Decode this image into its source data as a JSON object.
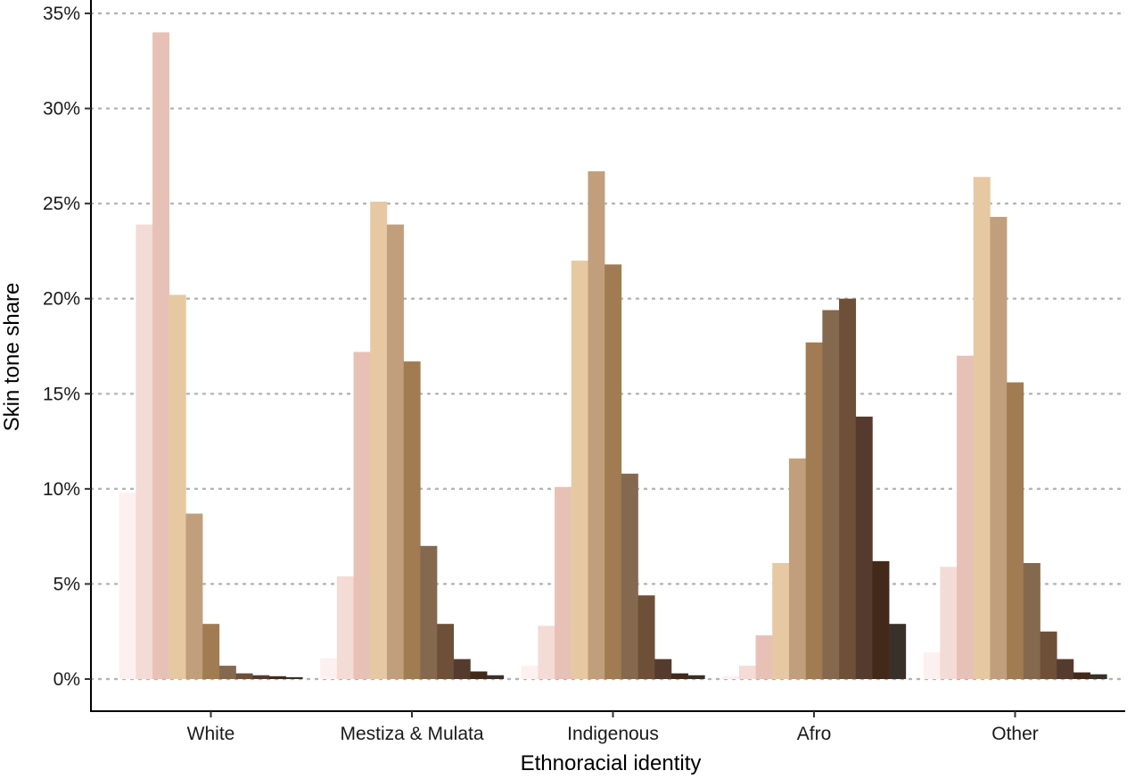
{
  "chart_data": {
    "type": "bar",
    "xlabel": "Ethnoracial identity",
    "ylabel": "Skin tone share",
    "ylim": [
      0,
      35
    ],
    "yticks": [
      0,
      5,
      10,
      15,
      20,
      25,
      30,
      35
    ],
    "ytick_labels": [
      "0%",
      "5%",
      "10%",
      "15%",
      "20%",
      "25%",
      "30%",
      "35%"
    ],
    "grid": "horizontal dotted",
    "legend": "none",
    "categories": [
      "White",
      "Mestiza & Mulata",
      "Indigenous",
      "Afro",
      "Other"
    ],
    "series_colors": [
      "#fdf0f0",
      "#f3dbd6",
      "#e8c1b6",
      "#e6c9a2",
      "#c19f7d",
      "#a17c52",
      "#84694f",
      "#6e5038",
      "#553b2e",
      "#43291a",
      "#393029"
    ],
    "series": [
      {
        "values": [
          9.8,
          1.1,
          0.7,
          0.15,
          1.4
        ]
      },
      {
        "values": [
          23.9,
          5.4,
          2.8,
          0.7,
          5.9
        ]
      },
      {
        "values": [
          34.0,
          17.2,
          10.1,
          2.3,
          17.0
        ]
      },
      {
        "values": [
          20.2,
          25.1,
          22.0,
          6.1,
          26.4
        ]
      },
      {
        "values": [
          8.7,
          23.9,
          26.7,
          11.6,
          24.3
        ]
      },
      {
        "values": [
          2.9,
          16.7,
          21.8,
          17.7,
          15.6
        ]
      },
      {
        "values": [
          0.7,
          7.0,
          10.8,
          19.4,
          6.1
        ]
      },
      {
        "values": [
          0.3,
          2.9,
          4.4,
          20.0,
          2.5
        ]
      },
      {
        "values": [
          0.2,
          1.05,
          1.05,
          13.8,
          1.05
        ]
      },
      {
        "values": [
          0.15,
          0.4,
          0.3,
          6.2,
          0.35
        ]
      },
      {
        "values": [
          0.1,
          0.2,
          0.2,
          2.9,
          0.25
        ]
      }
    ]
  }
}
